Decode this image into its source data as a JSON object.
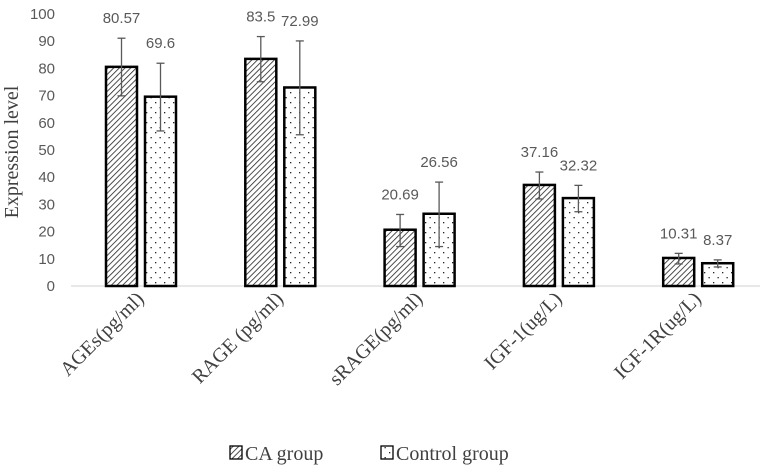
{
  "chart_data": {
    "type": "bar",
    "title": "",
    "xlabel": "",
    "ylabel": "Expression level",
    "ylim": [
      0,
      100
    ],
    "yticks": [
      0,
      10,
      20,
      30,
      40,
      50,
      60,
      70,
      80,
      90,
      100
    ],
    "grid": false,
    "legend_position": "bottom",
    "categories": [
      "AGEs(pg/ml)",
      "RAGE (pg/ml)",
      "sRAGE(pg/ml)",
      "IGF-1(ug/L)",
      "IGF-1R(ug/L)"
    ],
    "series": [
      {
        "name": "CA group",
        "pattern": "diagonal-hatch",
        "values": [
          80.57,
          83.5,
          20.69,
          37.16,
          10.31
        ],
        "labels": [
          "80.57",
          "83.5",
          "20.69",
          "37.16",
          "10.31"
        ],
        "error_upper": [
          91.1,
          91.7,
          26.3,
          41.9,
          12.0
        ],
        "error_lower": [
          69.9,
          75.1,
          14.5,
          32.0,
          8.1
        ]
      },
      {
        "name": "Control group",
        "pattern": "dots",
        "values": [
          69.6,
          72.99,
          26.56,
          32.32,
          8.37
        ],
        "labels": [
          "69.6",
          "72.99",
          "26.56",
          "32.32",
          "8.37"
        ],
        "error_upper": [
          81.9,
          90.1,
          38.2,
          37.0,
          9.6
        ],
        "error_lower": [
          57.0,
          55.6,
          14.5,
          27.3,
          7.0
        ]
      }
    ]
  }
}
